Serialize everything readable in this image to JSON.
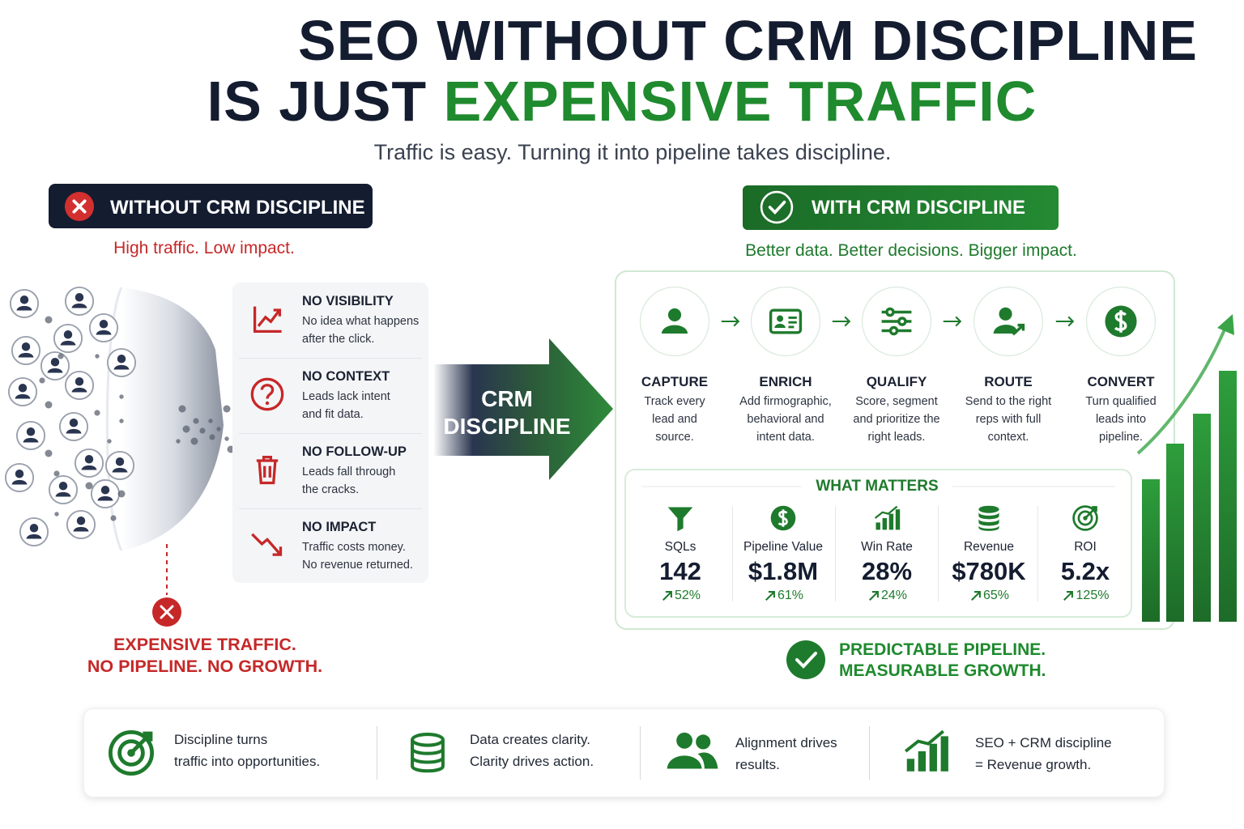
{
  "header": {
    "title_line1": "SEO WITHOUT CRM DISCIPLINE",
    "title_line2_prefix": "IS JUST",
    "title_line2_highlight": "EXPENSIVE TRAFFIC",
    "subtitle": "Traffic is easy. Turning it into pipeline takes discipline."
  },
  "without": {
    "badge": "WITHOUT CRM DISCIPLINE",
    "tagline": "High traffic. Low impact.",
    "problems": [
      {
        "title": "NO VISIBILITY",
        "lines": [
          "No idea what happens",
          "after the click."
        ]
      },
      {
        "title": "NO CONTEXT",
        "lines": [
          "Leads lack intent",
          "and fit data."
        ]
      },
      {
        "title": "NO FOLLOW-UP",
        "lines": [
          "Leads fall through",
          "the cracks."
        ]
      },
      {
        "title": "NO IMPACT",
        "lines": [
          "Traffic costs money.",
          "No revenue returned."
        ]
      }
    ],
    "outcome": [
      "EXPENSIVE TRAFFIC.",
      "NO PIPELINE. NO GROWTH."
    ]
  },
  "bridge": {
    "lines": [
      "CRM",
      "DISCIPLINE"
    ]
  },
  "with": {
    "badge": "WITH CRM DISCIPLINE",
    "tagline": "Better data. Better decisions. Bigger impact.",
    "steps": [
      {
        "title": "CAPTURE",
        "lines": [
          "Track every",
          "lead and",
          "source."
        ]
      },
      {
        "title": "ENRICH",
        "lines": [
          "Add firmographic,",
          "behavioral and",
          "intent data."
        ]
      },
      {
        "title": "QUALIFY",
        "lines": [
          "Score, segment",
          "and prioritize the",
          "right leads."
        ]
      },
      {
        "title": "ROUTE",
        "lines": [
          "Send to the right",
          "reps with full",
          "context."
        ]
      },
      {
        "title": "CONVERT",
        "lines": [
          "Turn qualified",
          "leads into",
          "pipeline."
        ]
      }
    ],
    "what_matters": {
      "title": "WHAT MATTERS",
      "metrics": [
        {
          "label": "SQLs",
          "value": "142",
          "change": "52%"
        },
        {
          "label": "Pipeline Value",
          "value": "$1.8M",
          "change": "61%"
        },
        {
          "label": "Win Rate",
          "value": "28%",
          "change": "24%"
        },
        {
          "label": "Revenue",
          "value": "$780K",
          "change": "65%"
        },
        {
          "label": "ROI",
          "value": "5.2x",
          "change": "125%"
        }
      ]
    },
    "result": [
      "PREDICTABLE PIPELINE.",
      "MEASURABLE GROWTH."
    ]
  },
  "footer": [
    [
      "Discipline turns",
      "traffic into opportunities."
    ],
    [
      "Data creates clarity.",
      "Clarity drives action."
    ],
    [
      "Alignment drives",
      "results."
    ],
    [
      "SEO + CRM discipline",
      "= Revenue growth."
    ]
  ]
}
